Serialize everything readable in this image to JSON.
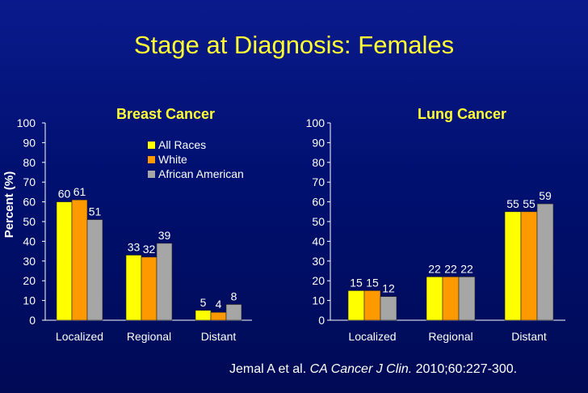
{
  "title": "Stage at Diagnosis: Females",
  "citation": {
    "prefix": "Jemal A et al. ",
    "journal": "CA Cancer J Clin.",
    "suffix": " 2010;60:227-300."
  },
  "colors": {
    "title": "#ffff33",
    "axis_text": "#ffffff",
    "chart_title": "#ffff33"
  },
  "chart_data": [
    {
      "type": "bar",
      "title": "Breast Cancer",
      "ylabel": "Percent (%)",
      "xlabel": "",
      "ylim": [
        0,
        100
      ],
      "yticks": [
        "0",
        "10",
        "20",
        "30",
        "40",
        "50",
        "60",
        "70",
        "80",
        "90",
        "100"
      ],
      "categories": [
        "Localized",
        "Regional",
        "Distant"
      ],
      "legend": "top-right",
      "series": [
        {
          "name": "All Races",
          "color": "#ffff00",
          "values": [
            60,
            33,
            5
          ]
        },
        {
          "name": "White",
          "color": "#ff9900",
          "values": [
            61,
            32,
            4
          ]
        },
        {
          "name": "African American",
          "color": "#a6a6a6",
          "values": [
            51,
            39,
            8
          ]
        }
      ]
    },
    {
      "type": "bar",
      "title": "Lung Cancer",
      "ylabel": "",
      "xlabel": "",
      "ylim": [
        0,
        100
      ],
      "yticks": [
        "0",
        "10",
        "20",
        "30",
        "40",
        "50",
        "60",
        "70",
        "80",
        "90",
        "100"
      ],
      "categories": [
        "Localized",
        "Regional",
        "Distant"
      ],
      "series": [
        {
          "color": "#ffff00",
          "values": [
            15,
            22,
            55
          ]
        },
        {
          "color": "#ff9900",
          "values": [
            15,
            22,
            55
          ]
        },
        {
          "color": "#a6a6a6",
          "values": [
            12,
            22,
            59
          ]
        }
      ]
    }
  ]
}
